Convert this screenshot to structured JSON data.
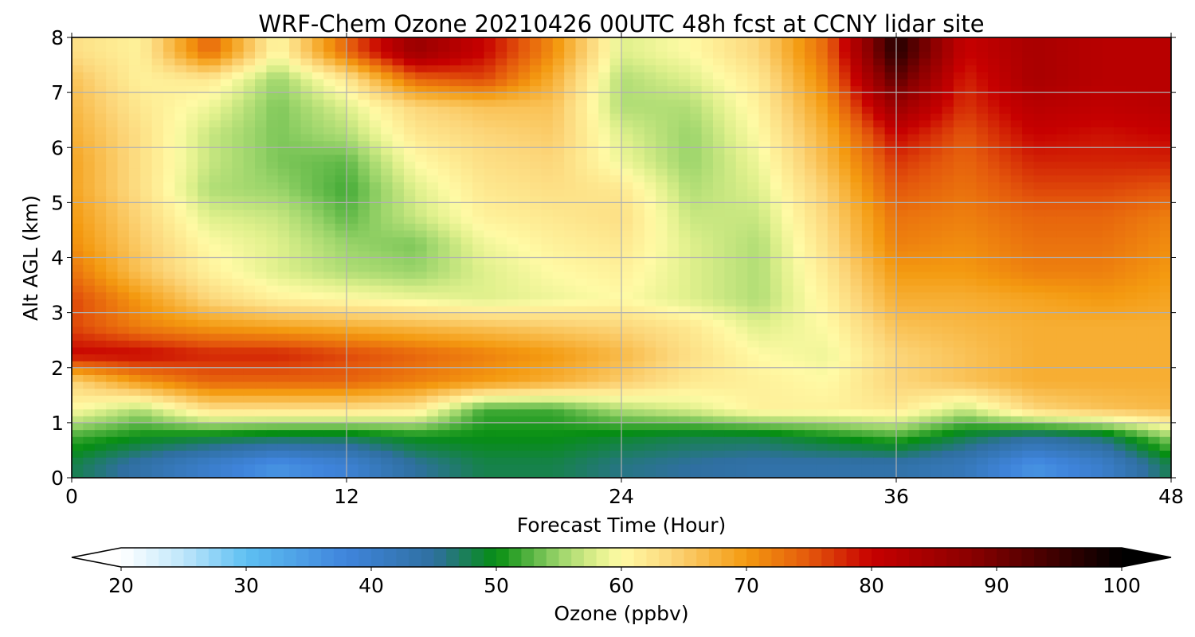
{
  "chart_data": {
    "type": "heatmap",
    "title": "WRF-Chem Ozone  20210426 00UTC 48h fcst at CCNY lidar site",
    "xlabel": "Forecast Time (Hour)",
    "ylabel": "Alt AGL (km)",
    "xlim": [
      0,
      48
    ],
    "ylim": [
      0,
      8
    ],
    "x_ticks": [
      "0",
      "12",
      "24",
      "36",
      "48"
    ],
    "y_ticks": [
      "0",
      "1",
      "2",
      "3",
      "4",
      "5",
      "6",
      "7",
      "8"
    ],
    "grid": true,
    "x": [
      0,
      3,
      6,
      9,
      12,
      15,
      18,
      21,
      24,
      27,
      30,
      33,
      36,
      39,
      42,
      45,
      48
    ],
    "y": [
      0.25,
      0.75,
      1.25,
      1.75,
      2.25,
      2.75,
      3.25,
      3.75,
      4.25,
      4.75,
      5.25,
      5.75,
      6.25,
      6.75,
      7.25,
      7.75
    ],
    "z": [
      [
        48,
        44,
        40,
        36,
        39,
        45,
        48,
        48,
        46,
        45,
        44,
        44,
        44,
        42,
        36,
        40,
        48
      ],
      [
        52,
        50,
        49,
        48,
        48,
        50,
        50,
        50,
        49,
        48,
        48,
        50,
        52,
        48,
        45,
        47,
        55
      ],
      [
        60,
        56,
        63,
        63,
        63,
        62,
        52,
        52,
        56,
        58,
        61,
        61,
        62,
        57,
        64,
        66,
        67
      ],
      [
        64,
        70,
        74,
        74,
        74,
        72,
        70,
        68,
        65,
        62,
        61,
        60,
        64,
        66,
        68,
        68,
        68
      ],
      [
        80,
        80,
        78,
        78,
        76,
        74,
        72,
        70,
        67,
        63,
        60,
        59,
        64,
        66,
        68,
        68,
        68
      ],
      [
        76,
        72,
        70,
        69,
        68,
        67,
        66,
        65,
        64,
        62,
        58,
        60,
        66,
        67,
        68,
        68,
        68
      ],
      [
        76,
        70,
        64,
        61,
        60,
        59,
        58,
        59,
        60,
        58,
        56,
        61,
        68,
        68,
        69,
        70,
        69
      ],
      [
        73,
        66,
        61,
        58,
        56,
        55,
        58,
        60,
        61,
        58,
        56,
        62,
        70,
        70,
        72,
        72,
        70
      ],
      [
        71,
        65,
        60,
        58,
        55,
        54,
        59,
        61,
        62,
        58,
        56,
        63,
        72,
        71,
        73,
        73,
        71
      ],
      [
        70,
        64,
        58,
        57,
        53,
        57,
        61,
        62,
        63,
        57,
        57,
        64,
        73,
        72,
        74,
        74,
        72
      ],
      [
        69,
        63,
        56,
        55,
        52,
        58,
        62,
        63,
        62,
        56,
        58,
        65,
        75,
        73,
        76,
        76,
        75
      ],
      [
        69,
        63,
        57,
        54,
        53,
        60,
        63,
        64,
        59,
        55,
        59,
        67,
        77,
        74,
        78,
        78,
        78
      ],
      [
        68,
        63,
        57,
        54,
        56,
        62,
        64,
        65,
        58,
        55,
        60,
        68,
        80,
        75,
        80,
        79,
        80
      ],
      [
        67,
        62,
        59,
        54,
        58,
        64,
        66,
        66,
        56,
        56,
        61,
        70,
        86,
        77,
        82,
        81,
        82
      ],
      [
        66,
        61,
        62,
        55,
        62,
        74,
        76,
        68,
        56,
        58,
        62,
        72,
        92,
        78,
        84,
        82,
        82
      ],
      [
        63,
        61,
        74,
        60,
        74,
        86,
        80,
        71,
        58,
        60,
        64,
        74,
        97,
        80,
        84,
        82,
        82
      ]
    ],
    "colorbar": {
      "label": "Ozone  (ppbv)",
      "min": 20,
      "max": 100,
      "tick_labels": [
        "20",
        "30",
        "40",
        "50",
        "60",
        "70",
        "80",
        "90",
        "100"
      ],
      "extend": "both"
    },
    "colormap_anchors": [
      [
        20,
        "#ffffff"
      ],
      [
        25,
        "#bfe6fb"
      ],
      [
        30,
        "#5ec0f2"
      ],
      [
        38,
        "#3f84dc"
      ],
      [
        45,
        "#2f6fa0"
      ],
      [
        50,
        "#068e12"
      ],
      [
        55,
        "#9ad46a"
      ],
      [
        58,
        "#dff08c"
      ],
      [
        60,
        "#fffaa5"
      ],
      [
        64,
        "#fcd67a"
      ],
      [
        70,
        "#f49a10"
      ],
      [
        75,
        "#e4580c"
      ],
      [
        80,
        "#c70000"
      ],
      [
        88,
        "#8a0000"
      ],
      [
        95,
        "#3a0000"
      ],
      [
        100,
        "#000000"
      ]
    ]
  }
}
